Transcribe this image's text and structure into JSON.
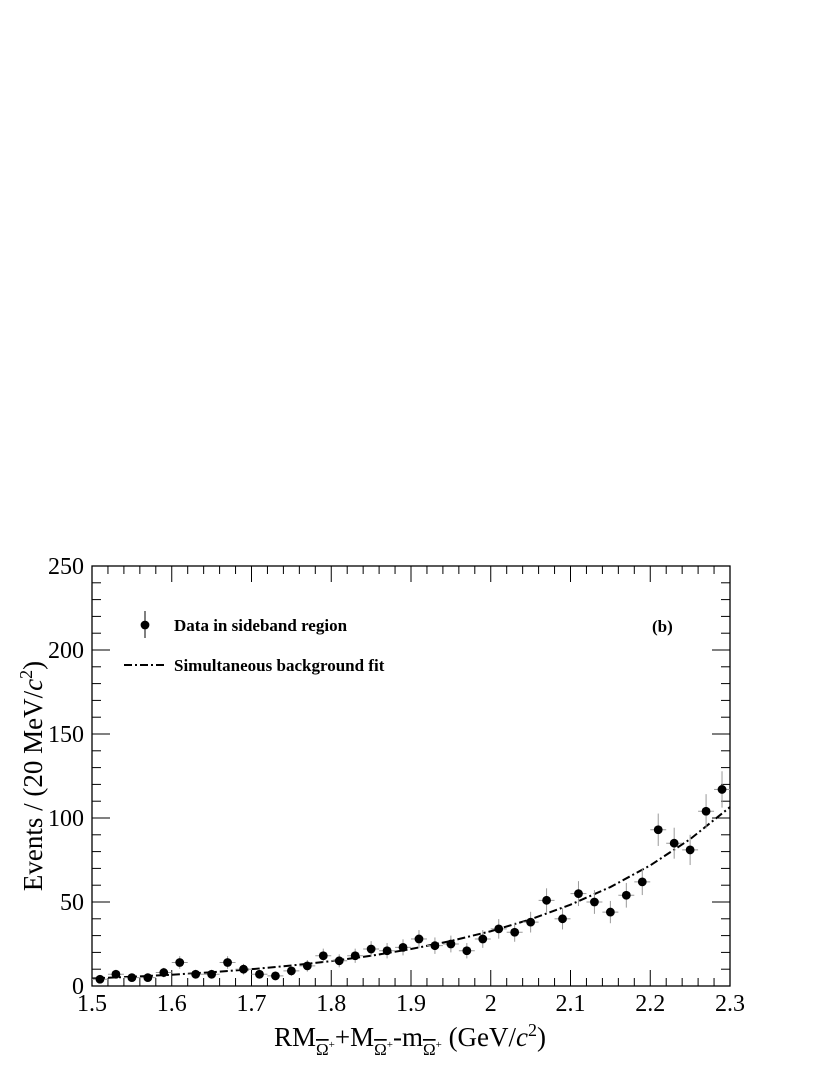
{
  "chart_data": {
    "type": "scatter",
    "panel_label": "(b)",
    "xlabel": {
      "parts": [
        "RM",
        "Ω",
        "+",
        "+M",
        "Ω",
        "+",
        "-m",
        "Ω",
        "+",
        " (GeV/",
        "c",
        "2",
        ")"
      ]
    },
    "ylabel": {
      "parts": [
        "Events / (20 MeV/",
        "c",
        "2",
        ")"
      ]
    },
    "xlim": [
      1.5,
      2.3
    ],
    "ylim": [
      0,
      250
    ],
    "x_ticks": [
      "1.5",
      "1.6",
      "1.7",
      "1.8",
      "1.9",
      "2",
      "2.1",
      "2.2",
      "2.3"
    ],
    "y_ticks": [
      "0",
      "50",
      "100",
      "150",
      "200",
      "250"
    ],
    "grid": false,
    "legend_position": "top-left",
    "legend": [
      {
        "label": "Data in sideband region",
        "kind": "points"
      },
      {
        "label": "Simultaneous background fit",
        "kind": "dash-dot-line"
      }
    ],
    "series": [
      {
        "name": "Data in sideband region",
        "kind": "points-with-errors",
        "x_halfwidth": 0.01,
        "x": [
          1.51,
          1.53,
          1.55,
          1.57,
          1.59,
          1.61,
          1.63,
          1.65,
          1.67,
          1.69,
          1.71,
          1.73,
          1.75,
          1.77,
          1.79,
          1.81,
          1.83,
          1.85,
          1.87,
          1.89,
          1.91,
          1.93,
          1.95,
          1.97,
          1.99,
          2.01,
          2.03,
          2.05,
          2.07,
          2.09,
          2.11,
          2.13,
          2.15,
          2.17,
          2.19,
          2.21,
          2.23,
          2.25,
          2.27,
          2.29
        ],
        "y": [
          4,
          7,
          5,
          5,
          8,
          14,
          7,
          7,
          14,
          10,
          7,
          6,
          9,
          12,
          18,
          15,
          18,
          22,
          21,
          23,
          28,
          24,
          25,
          21,
          28,
          34,
          32,
          38,
          51,
          40,
          55,
          50,
          44,
          54,
          62,
          93,
          85,
          81,
          104,
          117
        ]
      },
      {
        "name": "Simultaneous background fit",
        "kind": "curve",
        "x": [
          1.5,
          1.55,
          1.6,
          1.65,
          1.7,
          1.75,
          1.8,
          1.85,
          1.9,
          1.95,
          2.0,
          2.05,
          2.1,
          2.15,
          2.2,
          2.25,
          2.3
        ],
        "y": [
          4.5,
          5.5,
          6.7,
          8.2,
          10,
          12.2,
          14.8,
          18,
          22,
          26.8,
          32.6,
          39.7,
          48.4,
          58.9,
          71.8,
          87.4,
          106.5
        ]
      }
    ]
  }
}
